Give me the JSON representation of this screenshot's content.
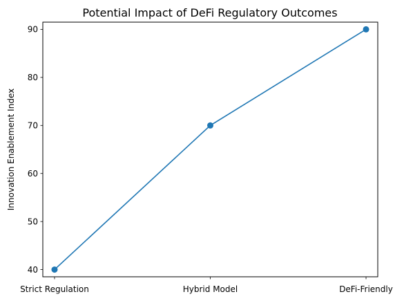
{
  "chart_data": {
    "type": "line",
    "title": "Potential Impact of DeFi Regulatory Outcomes",
    "xlabel": "",
    "ylabel": "Innovation Enablement Index",
    "categories": [
      "Strict Regulation",
      "Hybrid Model",
      "DeFi-Friendly"
    ],
    "series": [
      {
        "values": [
          40,
          70,
          90
        ],
        "color": "#1f77b4",
        "marker": "circle"
      }
    ],
    "ylim": [
      38.5,
      91.5
    ],
    "yticks": [
      40,
      50,
      60,
      70,
      80,
      90
    ],
    "grid": false
  }
}
